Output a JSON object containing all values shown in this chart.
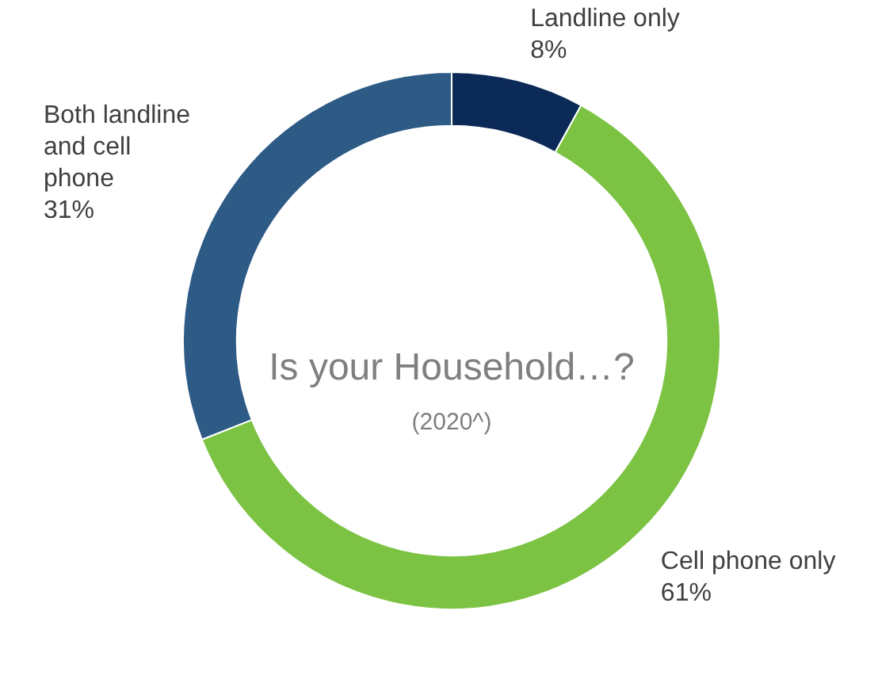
{
  "chart_data": {
    "type": "donut",
    "title": "Is your Household…?",
    "subtitle": "(2020^)",
    "categories": [
      "Landline only",
      "Cell phone only",
      "Both landline and cell phone"
    ],
    "values": [
      8,
      61,
      31
    ],
    "colors": [
      "#0b2a57",
      "#7cc243",
      "#2e5a86"
    ],
    "value_labels": [
      "8%",
      "61%",
      "31%"
    ],
    "legend": false
  }
}
